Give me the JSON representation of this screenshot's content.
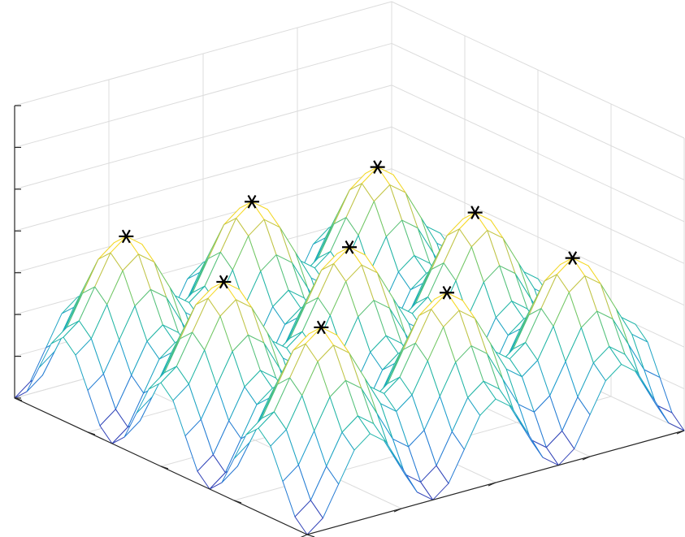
{
  "chart_data": {
    "type": "mesh",
    "x": [
      -3,
      -2.75,
      -2.5,
      -2.25,
      -2,
      -1.75,
      -1.5,
      -1.25,
      -1,
      -0.75,
      -0.5,
      -0.25,
      0,
      0.25,
      0.5,
      0.75,
      1,
      1.25,
      1.5,
      1.75,
      2,
      2.25,
      2.5,
      2.75,
      3
    ],
    "y": [
      -3,
      -2.75,
      -2.5,
      -2.25,
      -2,
      -1.75,
      -1.5,
      -1.25,
      -1,
      -0.75,
      -0.5,
      -0.25,
      0,
      0.25,
      0.5,
      0.75,
      1,
      1.25,
      1.5,
      1.75,
      2,
      2.25,
      2.5,
      2.75,
      3
    ],
    "z": [
      [
        -2,
        -1.71,
        -1,
        -0.29,
        0,
        -0.29,
        -1,
        -1.71,
        -2,
        -1.71,
        -1,
        -0.29,
        0,
        -0.29,
        -1,
        -1.71,
        -2,
        -1.71,
        -1,
        -0.29,
        0,
        -0.29,
        -1,
        -1.71,
        -2
      ],
      [
        -1.71,
        -1.42,
        -0.71,
        0,
        0.29,
        0,
        -0.71,
        -1.42,
        -1.71,
        -1.42,
        -0.71,
        0,
        0.29,
        0,
        -0.71,
        -1.42,
        -1.71,
        -1.42,
        -0.71,
        0,
        0.29,
        0,
        -0.71,
        -1.42,
        -1.71
      ],
      [
        -1,
        -0.71,
        0,
        0.71,
        1,
        0.71,
        0,
        -0.71,
        -1,
        -0.71,
        0,
        0.71,
        1,
        0.71,
        0,
        -0.71,
        -1,
        -0.71,
        0,
        0.71,
        1,
        0.71,
        0,
        -0.71,
        -1
      ],
      [
        -0.29,
        0,
        0.71,
        1.42,
        1.71,
        1.42,
        0.71,
        0,
        -0.29,
        0,
        0.71,
        1.42,
        1.71,
        1.42,
        0.71,
        0,
        -0.29,
        0,
        0.71,
        1.42,
        1.71,
        1.42,
        0.71,
        0,
        -0.29
      ],
      [
        0,
        0.29,
        1,
        1.71,
        2,
        1.71,
        1,
        0.29,
        0,
        0.29,
        1,
        1.71,
        2,
        1.71,
        1,
        0.29,
        0,
        0.29,
        1,
        1.71,
        2,
        1.71,
        1,
        0.29,
        0
      ],
      [
        -0.29,
        0,
        0.71,
        1.42,
        1.71,
        1.42,
        0.71,
        0,
        -0.29,
        0,
        0.71,
        1.42,
        1.71,
        1.42,
        0.71,
        0,
        -0.29,
        0,
        0.71,
        1.42,
        1.71,
        1.42,
        0.71,
        0,
        -0.29
      ],
      [
        -1,
        -0.71,
        0,
        0.71,
        1,
        0.71,
        0,
        -0.71,
        -1,
        -0.71,
        0,
        0.71,
        1,
        0.71,
        0,
        -0.71,
        -1,
        -0.71,
        0,
        0.71,
        1,
        0.71,
        0,
        -0.71,
        -1
      ],
      [
        -1.71,
        -1.42,
        -0.71,
        0,
        0.29,
        0,
        -0.71,
        -1.42,
        -1.71,
        -1.42,
        -0.71,
        0,
        0.29,
        0,
        -0.71,
        -1.42,
        -1.71,
        -1.42,
        -0.71,
        0,
        0.29,
        0,
        -0.71,
        -1.42,
        -1.71
      ],
      [
        -2,
        -1.71,
        -1,
        -0.29,
        0,
        -0.29,
        -1,
        -1.71,
        -2,
        -1.71,
        -1,
        -0.29,
        0,
        -0.29,
        -1,
        -1.71,
        -2,
        -1.71,
        -1,
        -0.29,
        0,
        -0.29,
        -1,
        -1.71,
        -2
      ],
      [
        -1.71,
        -1.42,
        -0.71,
        0,
        0.29,
        0,
        -0.71,
        -1.42,
        -1.71,
        -1.42,
        -0.71,
        0,
        0.29,
        0,
        -0.71,
        -1.42,
        -1.71,
        -1.42,
        -0.71,
        0,
        0.29,
        0,
        -0.71,
        -1.42,
        -1.71
      ],
      [
        -1,
        -0.71,
        0,
        0.71,
        1,
        0.71,
        0,
        -0.71,
        -1,
        -0.71,
        0,
        0.71,
        1,
        0.71,
        0,
        -0.71,
        -1,
        -0.71,
        0,
        0.71,
        1,
        0.71,
        0,
        -0.71,
        -1
      ],
      [
        -0.29,
        0,
        0.71,
        1.42,
        1.71,
        1.42,
        0.71,
        0,
        -0.29,
        0,
        0.71,
        1.42,
        1.71,
        1.42,
        0.71,
        0,
        -0.29,
        0,
        0.71,
        1.42,
        1.71,
        1.42,
        0.71,
        0,
        -0.29
      ],
      [
        0,
        0.29,
        1,
        1.71,
        2,
        1.71,
        1,
        0.29,
        0,
        0.29,
        1,
        1.71,
        2,
        1.71,
        1,
        0.29,
        0,
        0.29,
        1,
        1.71,
        2,
        1.71,
        1,
        0.29,
        0
      ],
      [
        -0.29,
        0,
        0.71,
        1.42,
        1.71,
        1.42,
        0.71,
        0,
        -0.29,
        0,
        0.71,
        1.42,
        1.71,
        1.42,
        0.71,
        0,
        -0.29,
        0,
        0.71,
        1.42,
        1.71,
        1.42,
        0.71,
        0,
        -0.29
      ],
      [
        -1,
        -0.71,
        0,
        0.71,
        1,
        0.71,
        0,
        -0.71,
        -1,
        -0.71,
        0,
        0.71,
        1,
        0.71,
        0,
        -0.71,
        -1,
        -0.71,
        0,
        0.71,
        1,
        0.71,
        0,
        -0.71,
        -1
      ],
      [
        -1.71,
        -1.42,
        -0.71,
        0,
        0.29,
        0,
        -0.71,
        -1.42,
        -1.71,
        -1.42,
        -0.71,
        0,
        0.29,
        0,
        -0.71,
        -1.42,
        -1.71,
        -1.42,
        -0.71,
        0,
        0.29,
        0,
        -0.71,
        -1.42,
        -1.71
      ],
      [
        -2,
        -1.71,
        -1,
        -0.29,
        0,
        -0.29,
        -1,
        -1.71,
        -2,
        -1.71,
        -1,
        -0.29,
        0,
        -0.29,
        -1,
        -1.71,
        -2,
        -1.71,
        -1,
        -0.29,
        0,
        -0.29,
        -1,
        -1.71,
        -2
      ],
      [
        -1.71,
        -1.42,
        -0.71,
        0,
        0.29,
        0,
        -0.71,
        -1.42,
        -1.71,
        -1.42,
        -0.71,
        0,
        0.29,
        0,
        -0.71,
        -1.42,
        -1.71,
        -1.42,
        -0.71,
        0,
        0.29,
        0,
        -0.71,
        -1.42,
        -1.71
      ],
      [
        -1,
        -0.71,
        0,
        0.71,
        1,
        0.71,
        0,
        -0.71,
        -1,
        -0.71,
        0,
        0.71,
        1,
        0.71,
        0,
        -0.71,
        -1,
        -0.71,
        0,
        0.71,
        1,
        0.71,
        0,
        -0.71,
        -1
      ],
      [
        -0.29,
        0,
        0.71,
        1.42,
        1.71,
        1.42,
        0.71,
        0,
        -0.29,
        0,
        0.71,
        1.42,
        1.71,
        1.42,
        0.71,
        0,
        -0.29,
        0,
        0.71,
        1.42,
        1.71,
        1.42,
        0.71,
        0,
        -0.29
      ],
      [
        0,
        0.29,
        1,
        1.71,
        2,
        1.71,
        1,
        0.29,
        0,
        0.29,
        1,
        1.71,
        2,
        1.71,
        1,
        0.29,
        0,
        0.29,
        1,
        1.71,
        2,
        1.71,
        1,
        0.29,
        0
      ],
      [
        -0.29,
        0,
        0.71,
        1.42,
        1.71,
        1.42,
        0.71,
        0,
        -0.29,
        0,
        0.71,
        1.42,
        1.71,
        1.42,
        0.71,
        0,
        -0.29,
        0,
        0.71,
        1.42,
        1.71,
        1.42,
        0.71,
        0,
        -0.29
      ],
      [
        -1,
        -0.71,
        0,
        0.71,
        1,
        0.71,
        0,
        -0.71,
        -1,
        -0.71,
        0,
        0.71,
        1,
        0.71,
        0,
        -0.71,
        -1,
        -0.71,
        0,
        0.71,
        1,
        0.71,
        0,
        -0.71,
        -1
      ],
      [
        -1.71,
        -1.42,
        -0.71,
        0,
        0.29,
        0,
        -0.71,
        -1.42,
        -1.71,
        -1.42,
        -0.71,
        0,
        0.29,
        0,
        -0.71,
        -1.42,
        -1.71,
        -1.42,
        -0.71,
        0,
        0.29,
        0,
        -0.71,
        -1.42,
        -1.71
      ],
      [
        -2,
        -1.71,
        -1,
        -0.29,
        0,
        -0.29,
        -1,
        -1.71,
        -2,
        -1.71,
        -1,
        -0.29,
        0,
        -0.29,
        -1,
        -1.71,
        -2,
        -1.71,
        -1,
        -0.29,
        0,
        -0.29,
        -1,
        -1.71,
        -2
      ]
    ],
    "markers": {
      "color": "#000000",
      "x": [
        -2,
        0,
        2,
        -2,
        0,
        2,
        -2,
        0,
        2
      ],
      "y": [
        -2,
        -2,
        -2,
        0,
        0,
        0,
        2,
        2,
        2
      ],
      "z": [
        2,
        2,
        2,
        2,
        2,
        2,
        2,
        2,
        2
      ]
    },
    "xlim": [
      -3,
      3
    ],
    "xticks": [
      -3,
      -1.5,
      0,
      1.5,
      3
    ],
    "ylim": [
      -3,
      3
    ],
    "yticks": [
      -3,
      -1.5,
      0,
      1.5,
      3
    ],
    "zlim": [
      -2,
      5
    ],
    "zticks": [
      -2,
      -1,
      0,
      1,
      2,
      3,
      4,
      5
    ],
    "grid": true
  }
}
